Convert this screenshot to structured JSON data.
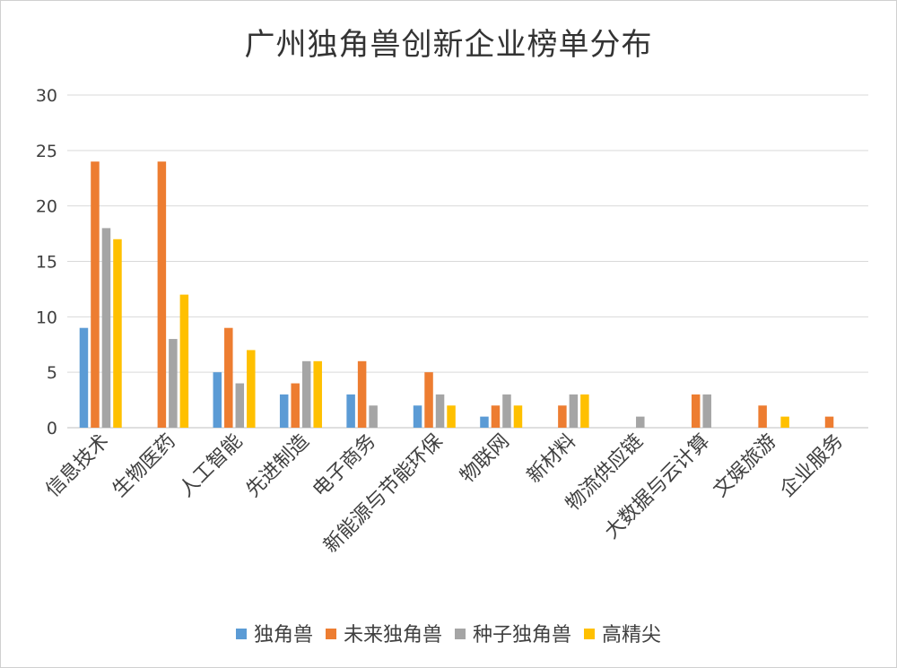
{
  "chart_data": {
    "type": "bar",
    "title": "广州独角兽创新企业榜单分布",
    "xlabel": "",
    "ylabel": "",
    "ylim": [
      0,
      30
    ],
    "yticks": [
      0,
      5,
      10,
      15,
      20,
      25,
      30
    ],
    "grid": true,
    "legend_position": "bottom",
    "categories": [
      "信息技术",
      "生物医药",
      "人工智能",
      "先进制造",
      "电子商务",
      "新能源与节能环保",
      "物联网",
      "新材料",
      "物流供应链",
      "大数据与云计算",
      "文娱旅游",
      "企业服务"
    ],
    "series": [
      {
        "name": "独角兽",
        "color": "#5b9bd5",
        "values": [
          9,
          0,
          5,
          3,
          3,
          2,
          1,
          0,
          0,
          0,
          0,
          0
        ]
      },
      {
        "name": "未来独角兽",
        "color": "#ed7d31",
        "values": [
          24,
          24,
          9,
          4,
          6,
          5,
          2,
          2,
          0,
          3,
          2,
          1
        ]
      },
      {
        "name": "种子独角兽",
        "color": "#a5a5a5",
        "values": [
          18,
          8,
          4,
          6,
          2,
          3,
          3,
          3,
          1,
          3,
          0,
          0
        ]
      },
      {
        "name": "高精尖",
        "color": "#ffc000",
        "values": [
          17,
          12,
          7,
          6,
          0,
          2,
          2,
          3,
          0,
          0,
          1,
          0
        ]
      }
    ]
  }
}
